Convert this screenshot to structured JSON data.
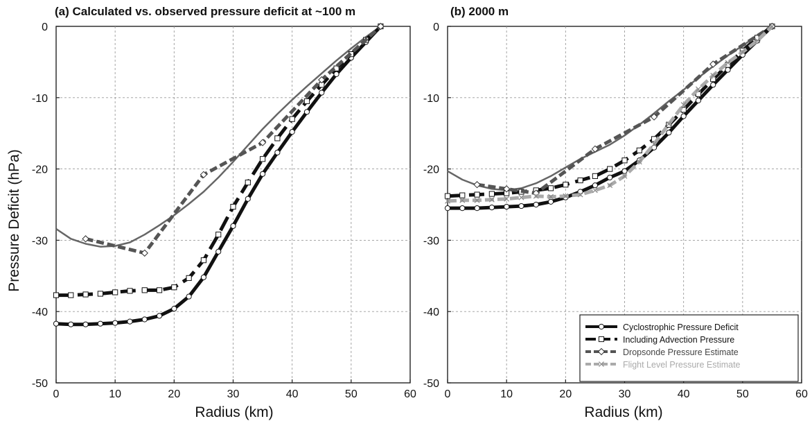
{
  "colors": {
    "cyclostrophic": "#111111",
    "advection": "#111111",
    "dropsonde": "#555555",
    "flight_level": "#aaaaaa",
    "thin_curve": "#666666",
    "grid": "#9a9a9a"
  },
  "ylabel": "Pressure Deficit (hPa)",
  "xlabel": "Radius (km)",
  "chart_data": [
    {
      "type": "line",
      "title": "(a) Calculated vs. observed pressure deficit at ~100 m",
      "xlabel": "Radius (km)",
      "ylabel": "Pressure Deficit (hPa)",
      "xlim": [
        0,
        60
      ],
      "ylim": [
        -50,
        0
      ],
      "xticks": [
        "0",
        "10",
        "20",
        "30",
        "40",
        "50",
        "60"
      ],
      "yticks": [
        "0",
        "-10",
        "-20",
        "-30",
        "-40",
        "-50"
      ],
      "grid": true,
      "series": [
        {
          "name": "Cyclostrophic Pressure Deficit",
          "style": "solid-thick-circles",
          "points": [
            [
              0,
              -41.7
            ],
            [
              2.5,
              -41.8
            ],
            [
              5,
              -41.8
            ],
            [
              7.5,
              -41.7
            ],
            [
              10,
              -41.6
            ],
            [
              12.5,
              -41.4
            ],
            [
              15,
              -41.1
            ],
            [
              17.5,
              -40.6
            ],
            [
              20,
              -39.6
            ],
            [
              22.5,
              -37.9
            ],
            [
              25,
              -35.2
            ],
            [
              27.5,
              -31.6
            ],
            [
              30,
              -28.0
            ],
            [
              32.5,
              -24.2
            ],
            [
              35,
              -20.7
            ],
            [
              37.5,
              -17.7
            ],
            [
              40,
              -14.8
            ],
            [
              42.5,
              -12.0
            ],
            [
              45,
              -9.3
            ],
            [
              47.5,
              -6.7
            ],
            [
              50,
              -4.4
            ],
            [
              52.5,
              -2.2
            ],
            [
              55,
              0
            ]
          ]
        },
        {
          "name": "Including Advection Pressure",
          "style": "dashed-thick-squares",
          "points": [
            [
              0,
              -37.7
            ],
            [
              2.5,
              -37.7
            ],
            [
              5,
              -37.6
            ],
            [
              7.5,
              -37.5
            ],
            [
              10,
              -37.3
            ],
            [
              12.5,
              -37.1
            ],
            [
              15,
              -37.0
            ],
            [
              17.5,
              -37.0
            ],
            [
              20,
              -36.6
            ],
            [
              22.5,
              -35.3
            ],
            [
              25,
              -32.8
            ],
            [
              27.5,
              -29.2
            ],
            [
              30,
              -25.3
            ],
            [
              32.5,
              -21.9
            ],
            [
              35,
              -18.6
            ],
            [
              37.5,
              -15.7
            ],
            [
              40,
              -13.0
            ],
            [
              42.5,
              -10.5
            ],
            [
              45,
              -8.2
            ],
            [
              47.5,
              -5.9
            ],
            [
              50,
              -3.9
            ],
            [
              52.5,
              -1.9
            ],
            [
              55,
              0
            ]
          ]
        },
        {
          "name": "Dropsonde Pressure Estimate",
          "style": "dashed-gray-diamonds",
          "points": [
            [
              5,
              -29.8
            ],
            [
              15,
              -31.8
            ],
            [
              25,
              -20.8
            ],
            [
              35,
              -16.3
            ],
            [
              45,
              -7.5
            ],
            [
              55,
              0
            ]
          ]
        },
        {
          "name": "",
          "style": "thin-gray",
          "points": [
            [
              0,
              -28.4
            ],
            [
              2.5,
              -29.8
            ],
            [
              5,
              -30.5
            ],
            [
              7.5,
              -30.9
            ],
            [
              10,
              -30.8
            ],
            [
              12.5,
              -30.3
            ],
            [
              15,
              -29.2
            ],
            [
              17.5,
              -27.9
            ],
            [
              20,
              -26.5
            ],
            [
              22.5,
              -24.9
            ],
            [
              25,
              -23.2
            ],
            [
              27.5,
              -21.2
            ],
            [
              30,
              -19.0
            ],
            [
              32.5,
              -16.7
            ],
            [
              35,
              -14.4
            ],
            [
              37.5,
              -12.3
            ],
            [
              40,
              -10.3
            ],
            [
              42.5,
              -8.4
            ],
            [
              45,
              -6.6
            ],
            [
              47.5,
              -4.8
            ],
            [
              50,
              -3.1
            ],
            [
              52.5,
              -1.5
            ],
            [
              55,
              0
            ]
          ]
        }
      ]
    },
    {
      "type": "line",
      "title": "(b) 2000 m",
      "xlabel": "Radius (km)",
      "ylabel": "",
      "xlim": [
        0,
        60
      ],
      "ylim": [
        -50,
        0
      ],
      "xticks": [
        "0",
        "10",
        "20",
        "30",
        "40",
        "50",
        "60"
      ],
      "yticks": [
        "0",
        "-10",
        "-20",
        "-30",
        "-40",
        "-50"
      ],
      "grid": true,
      "legend": {
        "position": "bottom-right",
        "entries": [
          "Cyclostrophic Pressure Deficit",
          "Including Advection Pressure",
          "Dropsonde Pressure Estimate",
          "Flight Level Pressure Estimate"
        ]
      },
      "series": [
        {
          "name": "Cyclostrophic Pressure Deficit",
          "style": "solid-thick-circles",
          "points": [
            [
              0,
              -25.5
            ],
            [
              2.5,
              -25.5
            ],
            [
              5,
              -25.5
            ],
            [
              7.5,
              -25.4
            ],
            [
              10,
              -25.3
            ],
            [
              12.5,
              -25.2
            ],
            [
              15,
              -25.0
            ],
            [
              17.5,
              -24.6
            ],
            [
              20,
              -24.0
            ],
            [
              22.5,
              -23.2
            ],
            [
              25,
              -22.3
            ],
            [
              27.5,
              -21.2
            ],
            [
              30,
              -20.3
            ],
            [
              32.5,
              -18.8
            ],
            [
              35,
              -17.0
            ],
            [
              37.5,
              -14.9
            ],
            [
              40,
              -12.6
            ],
            [
              42.5,
              -10.4
            ],
            [
              45,
              -8.2
            ],
            [
              47.5,
              -6.1
            ],
            [
              50,
              -4.0
            ],
            [
              52.5,
              -2.0
            ],
            [
              55,
              0
            ]
          ]
        },
        {
          "name": "Including Advection Pressure",
          "style": "dashed-thick-squares",
          "points": [
            [
              0,
              -23.8
            ],
            [
              2.5,
              -23.7
            ],
            [
              5,
              -23.6
            ],
            [
              7.5,
              -23.5
            ],
            [
              10,
              -23.4
            ],
            [
              12.5,
              -23.2
            ],
            [
              15,
              -23.0
            ],
            [
              17.5,
              -22.7
            ],
            [
              20,
              -22.2
            ],
            [
              22.5,
              -21.6
            ],
            [
              25,
              -21.0
            ],
            [
              27.5,
              -20.0
            ],
            [
              30,
              -18.8
            ],
            [
              32.5,
              -17.4
            ],
            [
              35,
              -15.8
            ],
            [
              37.5,
              -13.8
            ],
            [
              40,
              -11.7
            ],
            [
              42.5,
              -9.5
            ],
            [
              45,
              -7.4
            ],
            [
              47.5,
              -5.4
            ],
            [
              50,
              -3.4
            ],
            [
              52.5,
              -1.6
            ],
            [
              55,
              0
            ]
          ]
        },
        {
          "name": "Dropsonde Pressure Estimate",
          "style": "dashed-gray-diamonds",
          "points": [
            [
              5,
              -22.2
            ],
            [
              10,
              -22.8
            ],
            [
              15,
              -23.4
            ],
            [
              25,
              -17.2
            ],
            [
              35,
              -12.7
            ],
            [
              45,
              -5.3
            ],
            [
              55,
              0
            ]
          ]
        },
        {
          "name": "Flight Level Pressure Estimate",
          "style": "dashed-lightgray-x",
          "points": [
            [
              0,
              -24.5
            ],
            [
              2.5,
              -24.4
            ],
            [
              5,
              -24.4
            ],
            [
              7.5,
              -24.3
            ],
            [
              10,
              -24.2
            ],
            [
              12.5,
              -24.0
            ],
            [
              15,
              -23.8
            ],
            [
              17.5,
              -23.9
            ],
            [
              20,
              -23.8
            ],
            [
              22.5,
              -23.6
            ],
            [
              25,
              -23.0
            ],
            [
              27.5,
              -22.3
            ],
            [
              30,
              -21.0
            ],
            [
              32.5,
              -19.0
            ],
            [
              35,
              -16.5
            ],
            [
              37.5,
              -13.7
            ],
            [
              40,
              -11.0
            ],
            [
              42.5,
              -8.8
            ],
            [
              45,
              -6.9
            ],
            [
              47.5,
              -5.1
            ],
            [
              50,
              -3.6
            ],
            [
              52.5,
              -2.0
            ],
            [
              55,
              0
            ]
          ]
        },
        {
          "name": "",
          "style": "thin-gray",
          "points": [
            [
              0,
              -20.3
            ],
            [
              2.5,
              -21.5
            ],
            [
              5,
              -22.3
            ],
            [
              7.5,
              -22.8
            ],
            [
              10,
              -23.0
            ],
            [
              12.5,
              -22.7
            ],
            [
              15,
              -22.0
            ],
            [
              17.5,
              -21.0
            ],
            [
              20,
              -19.8
            ],
            [
              22.5,
              -18.6
            ],
            [
              25,
              -17.6
            ],
            [
              27.5,
              -16.6
            ],
            [
              30,
              -15.3
            ],
            [
              32.5,
              -13.8
            ],
            [
              35,
              -12.2
            ],
            [
              37.5,
              -10.5
            ],
            [
              40,
              -8.9
            ],
            [
              42.5,
              -7.2
            ],
            [
              45,
              -5.6
            ],
            [
              47.5,
              -4.1
            ],
            [
              50,
              -2.7
            ],
            [
              52.5,
              -1.3
            ],
            [
              55,
              0
            ]
          ]
        }
      ]
    }
  ]
}
